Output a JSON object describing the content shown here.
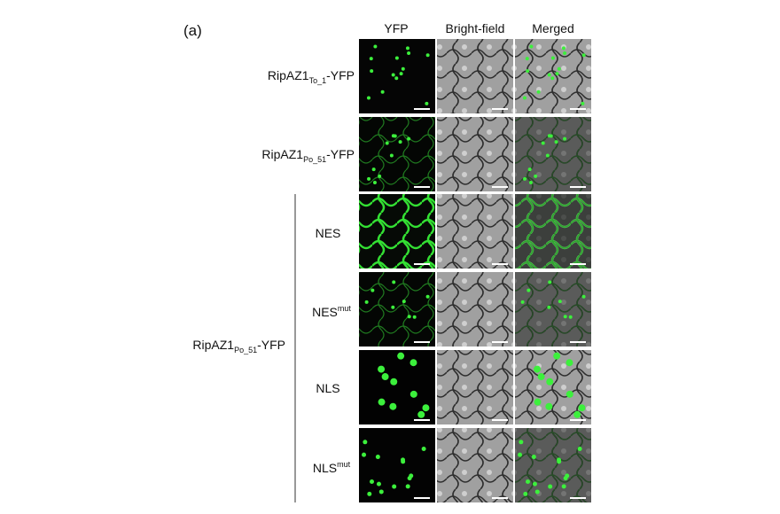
{
  "panel_label": "(a)",
  "columns": [
    "YFP",
    "Bright-field",
    "Merged"
  ],
  "rows": [
    {
      "label": {
        "main": "RipAZ1",
        "sub": "To_1",
        "suffix": "-YFP"
      }
    },
    {
      "label": {
        "main": "RipAZ1",
        "sub": "Po_51",
        "suffix": "-YFP"
      }
    }
  ],
  "group": {
    "label": {
      "main": "RipAZ1",
      "sub": "Po_51",
      "suffix": "-YFP"
    },
    "rows": [
      {
        "label": {
          "main": "NES"
        }
      },
      {
        "label": {
          "main": "NES",
          "sup": "mut"
        }
      },
      {
        "label": {
          "main": "NLS"
        }
      },
      {
        "label": {
          "main": "NLS",
          "sup": "mut"
        }
      }
    ]
  }
}
